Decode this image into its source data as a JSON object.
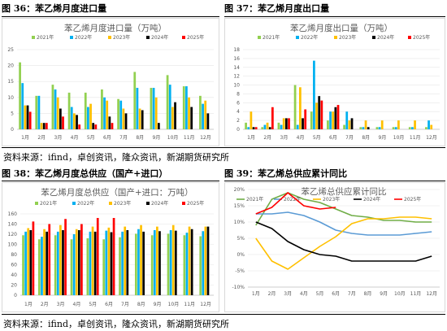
{
  "figures": {
    "fig36": "图 36：苯乙烯月度进口量",
    "fig37": "图 37：苯乙烯月度出口量",
    "fig38": "图 38：苯乙烯月度总供应（国产+进口）",
    "fig39": "图 39：苯乙烯总供应累计同比",
    "source1": "资料来源：ifind，卓创资讯，隆众资讯，新湖期货研究所",
    "source2": "资料来源：ifind，卓创资讯，隆众资讯，新湖期货研究所"
  },
  "colors": {
    "2021年": "#92d050",
    "2022年": "#00b0f0",
    "2023年": "#ffc000",
    "2024年": "#000000",
    "2025年": "#ff0000",
    "line2021": "#70ad47",
    "line2022": "#5b9bd5",
    "line2023": "#ffc000",
    "line2024": "#000000",
    "line2025": "#ff0000"
  },
  "chart_data": [
    {
      "type": "bar",
      "title": "苯乙烯月度进口量（万吨）",
      "categories": [
        "1月",
        "2月",
        "3月",
        "4月",
        "5月",
        "6月",
        "7月",
        "8月",
        "9月",
        "10月",
        "11月",
        "12月"
      ],
      "ylim": [
        0,
        25
      ],
      "yticks": [
        "0",
        "5",
        "10",
        "15",
        "20",
        "25"
      ],
      "series": [
        {
          "name": "2021年",
          "values": [
            21,
            10.5,
            14,
            11.5,
            11.5,
            12.5,
            9.5,
            18,
            13,
            17,
            13.5,
            10.5
          ]
        },
        {
          "name": "2022年",
          "values": [
            14.5,
            10.5,
            12.5,
            7,
            7,
            10,
            9,
            13,
            13,
            14,
            13.5,
            8
          ]
        },
        {
          "name": "2023年",
          "values": [
            7.5,
            2,
            10,
            5,
            8,
            9,
            6.5,
            6.5,
            10,
            7,
            10,
            9
          ]
        },
        {
          "name": "2024年",
          "values": [
            7.5,
            2,
            6.5,
            4.5,
            2,
            4,
            5,
            6,
            2,
            8.5,
            7,
            5
          ]
        },
        {
          "name": "2025年",
          "values": [
            5.5,
            2,
            4,
            1.5,
            1.5,
            2,
            0,
            0,
            0,
            0,
            0,
            0
          ]
        }
      ]
    },
    {
      "type": "bar",
      "title": "苯乙烯月度出口量（万吨）",
      "categories": [
        "1月",
        "2月",
        "3月",
        "4月",
        "5月",
        "6月",
        "7月",
        "8月",
        "9月",
        "10月",
        "11月",
        "12月"
      ],
      "ylim": [
        0,
        18
      ],
      "yticks": [
        "0",
        "2",
        "4",
        "6",
        "8",
        "10",
        "12",
        "14",
        "16",
        "18"
      ],
      "series": [
        {
          "name": "2021年",
          "values": [
            1.5,
            0.5,
            1.5,
            10,
            4,
            2,
            1,
            0.5,
            0.5,
            0.5,
            0.5,
            0.5
          ]
        },
        {
          "name": "2022年",
          "values": [
            0.5,
            1,
            1,
            1,
            15.5,
            4,
            4,
            0.5,
            0.5,
            0.5,
            0.5,
            2
          ]
        },
        {
          "name": "2023年",
          "values": [
            4,
            1.5,
            2.5,
            9.5,
            6,
            4,
            2,
            2,
            2,
            2,
            2,
            1
          ]
        },
        {
          "name": "2024年",
          "values": [
            0.5,
            0.5,
            2.5,
            2.5,
            7.5,
            5,
            2.5,
            0.5,
            0,
            0,
            0,
            0
          ]
        },
        {
          "name": "2025年",
          "values": [
            0.5,
            5,
            2.5,
            4.5,
            6.5,
            5.5,
            0,
            0,
            0,
            0,
            0,
            0
          ]
        }
      ]
    },
    {
      "type": "bar",
      "title": "苯乙烯月度总供应（国产+进口：万吨）",
      "categories": [
        "1月",
        "2月",
        "3月",
        "4月",
        "5月",
        "6月",
        "7月",
        "8月",
        "9月",
        "10月",
        "11月",
        "12月"
      ],
      "ylim": [
        0,
        160
      ],
      "yticks": [
        "0",
        "20",
        "40",
        "60",
        "80",
        "100",
        "120",
        "140",
        "160"
      ],
      "series": [
        {
          "name": "2021年",
          "values": [
            118,
            110,
            118,
            110,
            112,
            110,
            114,
            121,
            118,
            121,
            118,
            116
          ]
        },
        {
          "name": "2022年",
          "values": [
            125,
            115,
            125,
            120,
            125,
            127,
            125,
            130,
            128,
            128,
            123,
            126
          ]
        },
        {
          "name": "2023年",
          "values": [
            132,
            130,
            138,
            130,
            135,
            133,
            135,
            138,
            135,
            138,
            135,
            135
          ]
        },
        {
          "name": "2024年",
          "values": [
            128,
            125,
            128,
            128,
            125,
            124,
            128,
            125,
            126,
            127,
            130,
            135
          ]
        },
        {
          "name": "2025年",
          "values": [
            145,
            140,
            150,
            140,
            152,
            152,
            0,
            0,
            0,
            0,
            0,
            0
          ]
        }
      ]
    },
    {
      "type": "line",
      "title": "苯乙烯总供应累计同比",
      "categories": [
        "1月",
        "2月",
        "3月",
        "4月",
        "5月",
        "6月",
        "7月",
        "8月",
        "9月",
        "10月",
        "11月",
        "12月"
      ],
      "ylim": [
        -10,
        20
      ],
      "yticks": [
        "20%",
        "15%",
        "10%",
        "5%",
        "0%",
        "-5%",
        "-10%"
      ],
      "series": [
        {
          "name": "2021年",
          "values": [
            9,
            17,
            19,
            17,
            16,
            14,
            12,
            11.5,
            10.5,
            10.5,
            10,
            10
          ]
        },
        {
          "name": "2022年",
          "values": [
            12.5,
            12.5,
            13,
            12,
            10,
            7.5,
            6.5,
            6,
            6,
            6,
            6.5,
            7
          ]
        },
        {
          "name": "2023年",
          "values": [
            5,
            -2,
            -4.5,
            -1,
            2.5,
            5.5,
            9.5,
            11,
            11,
            11.5,
            11.5,
            11
          ]
        },
        {
          "name": "2024年",
          "values": [
            10,
            8,
            4,
            1.5,
            0,
            -0.5,
            -2,
            -2,
            -2,
            -2,
            -2,
            -0.5
          ]
        },
        {
          "name": "2025年",
          "values": [
            12.5,
            14.5,
            19,
            15,
            14,
            14.5,
            null,
            null,
            null,
            null,
            null,
            null
          ]
        }
      ]
    }
  ]
}
